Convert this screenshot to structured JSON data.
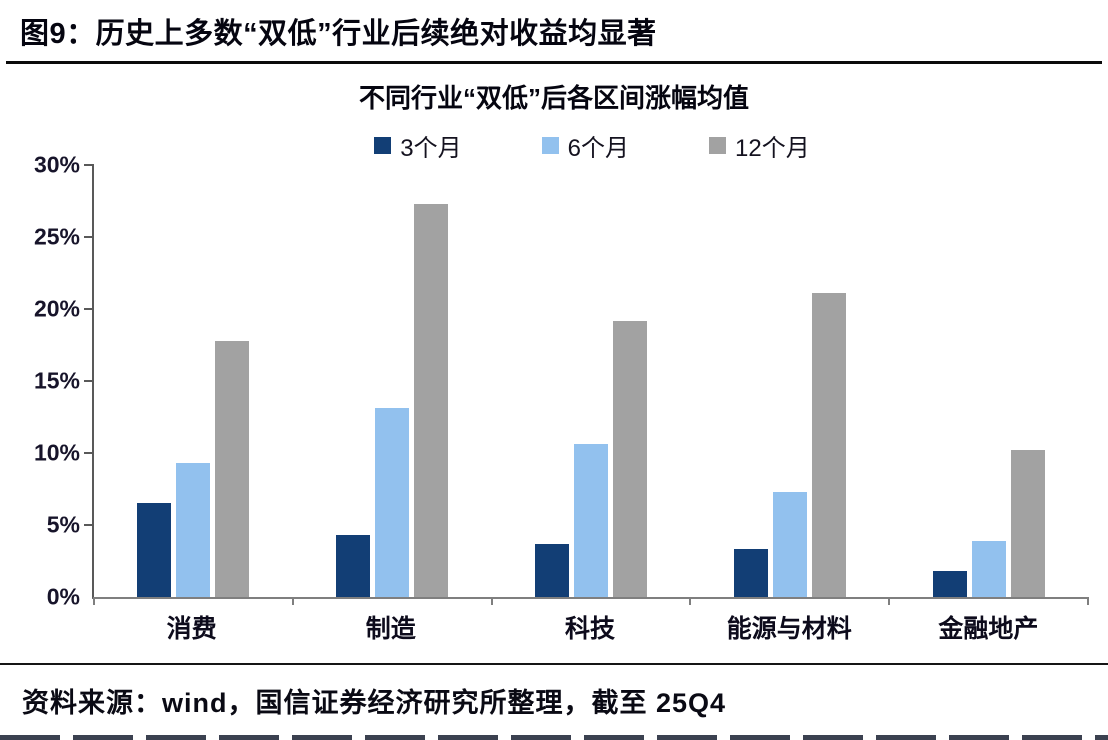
{
  "header": {
    "figure_title": "图9：历史上多数“双低”行业后续绝对收益均显著"
  },
  "footer": {
    "source_note": "资料来源：wind，国信证券经济研究所整理，截至 25Q4"
  },
  "colors": {
    "series_3m": "#123E75",
    "series_6m": "#92C1EE",
    "series_12m": "#A2A2A2",
    "axis_line": "#595959",
    "rule": "#0a0a0a"
  },
  "chart_data": {
    "type": "bar",
    "title": "不同行业“双低”后各区间涨幅均值",
    "categories": [
      "消费",
      "制造",
      "科技",
      "能源与材料",
      "金融地产"
    ],
    "series": [
      {
        "name": "3个月",
        "color": "#123E75",
        "values": [
          6.5,
          4.3,
          3.7,
          3.3,
          1.8
        ]
      },
      {
        "name": "6个月",
        "color": "#92C1EE",
        "values": [
          9.3,
          13.1,
          10.6,
          7.3,
          3.9
        ]
      },
      {
        "name": "12个月",
        "color": "#A2A2A2",
        "values": [
          17.8,
          27.3,
          19.2,
          21.1,
          10.2
        ]
      }
    ],
    "xlabel": "",
    "ylabel": "",
    "ylim": [
      0,
      30
    ],
    "ytick_step": 5,
    "ytick_labels_top_to_bottom": [
      "30%",
      "25%",
      "20%",
      "15%",
      "10%",
      "5%",
      "0%"
    ],
    "grid": false,
    "legend_position": "top"
  }
}
